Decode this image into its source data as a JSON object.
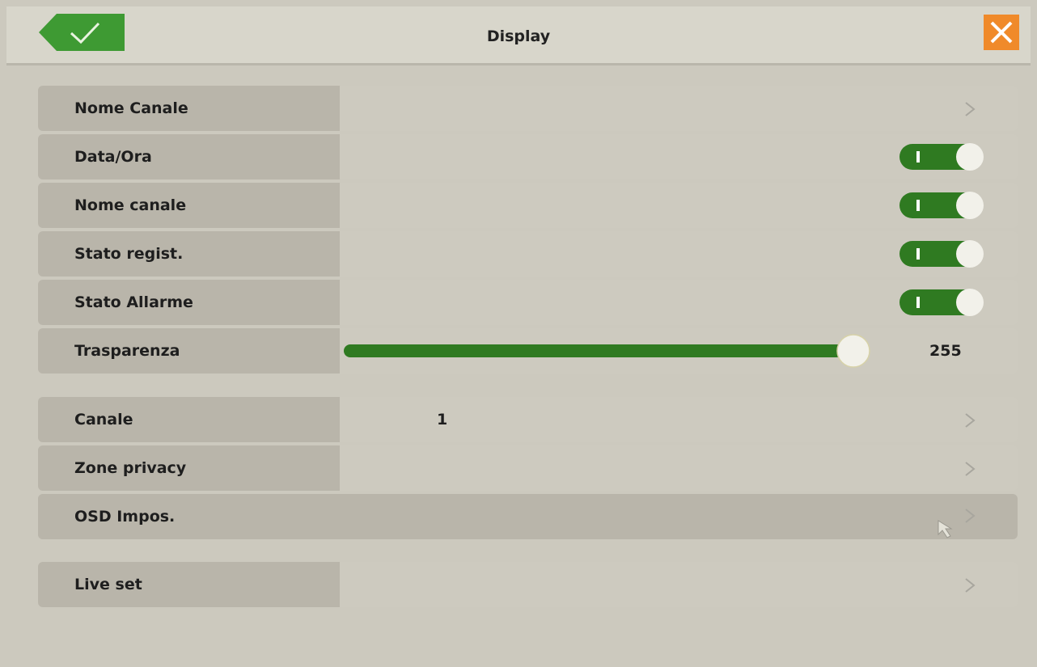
{
  "header": {
    "title": "Display"
  },
  "groups": [
    {
      "rows": [
        {
          "label": "Nome Canale"
        },
        {
          "label": "Data/Ora"
        },
        {
          "label": "Nome canale"
        },
        {
          "label": "Stato regist."
        },
        {
          "label": "Stato Allarme"
        },
        {
          "label": "Trasparenza",
          "value": 255
        }
      ]
    },
    {
      "rows": [
        {
          "label": "Canale",
          "value": 1
        },
        {
          "label": "Zone privacy"
        },
        {
          "label": "OSD Impos."
        }
      ]
    },
    {
      "rows": [
        {
          "label": "Live set"
        }
      ]
    }
  ]
}
